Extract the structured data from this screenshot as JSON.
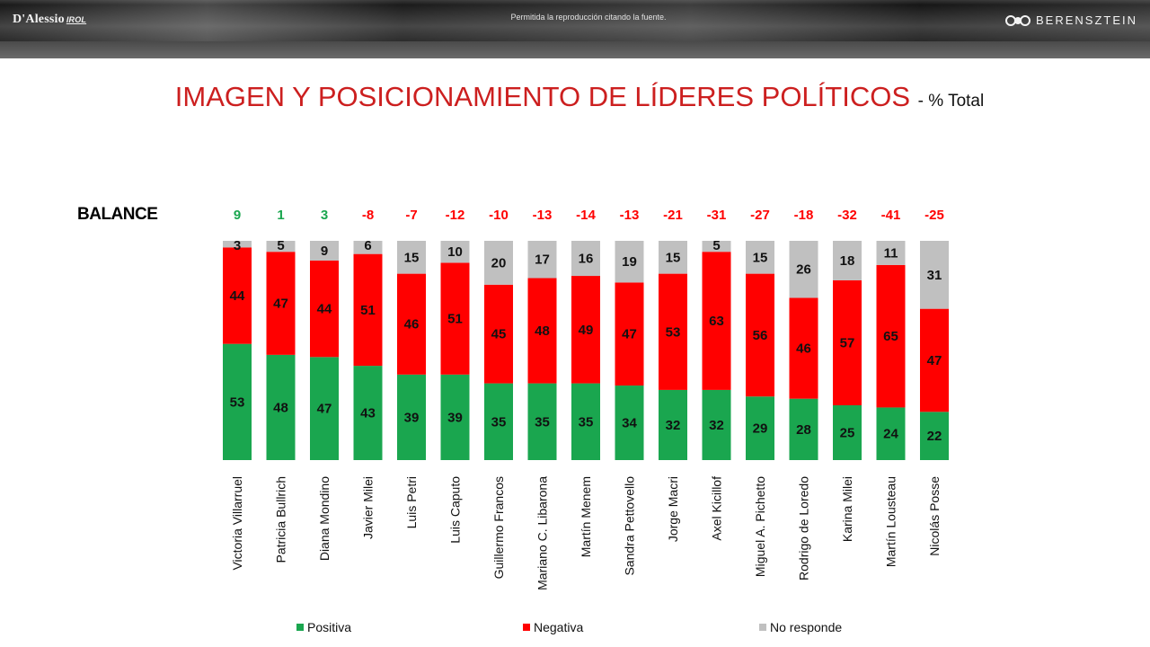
{
  "header": {
    "logo_left": "D'Alessio",
    "logo_left_sub": "IROL",
    "note": "Permitida la reproducción citando la fuente.",
    "logo_right": "BERENSZTEIN"
  },
  "colors": {
    "positive": "#1aa64f",
    "negative": "#ff0000",
    "no_response": "#c0c0c0",
    "balance_positive": "#1aa64f",
    "balance_negative": "#ff0000",
    "title": "#cc1f1f"
  },
  "chart_data": {
    "type": "bar",
    "stacked": true,
    "orientation": "vertical",
    "title": "IMAGEN Y POSICIONAMIENTO DE LÍDERES POLÍTICOS",
    "subtitle": "- % Total",
    "balance_label": "BALANCE",
    "ylim": [
      0,
      100
    ],
    "categories": [
      "Victoria Villarruel",
      "Patricia Bullrich",
      "Diana Mondino",
      "Javier Milei",
      "Luis Petri",
      "Luis Caputo",
      "Guillermo Francos",
      "Mariano C. Libarona",
      "Martín Menem",
      "Sandra Pettovello",
      "Jorge Macri",
      "Axel Kicillof",
      "Miguel A. Pichetto",
      "Rodrigo de Loredo",
      "Karina Milei",
      "Martín Lousteau",
      "Nicolás Posse"
    ],
    "series": [
      {
        "name": "Positiva",
        "values": [
          53,
          48,
          47,
          43,
          39,
          39,
          35,
          35,
          35,
          34,
          32,
          32,
          29,
          28,
          25,
          24,
          22
        ]
      },
      {
        "name": "Negativa",
        "values": [
          44,
          47,
          44,
          51,
          46,
          51,
          45,
          48,
          49,
          47,
          53,
          63,
          56,
          46,
          57,
          65,
          47
        ]
      },
      {
        "name": "No responde",
        "values": [
          3,
          5,
          9,
          6,
          15,
          10,
          20,
          17,
          16,
          19,
          15,
          5,
          15,
          26,
          18,
          11,
          31
        ]
      }
    ],
    "balance": [
      "9",
      "1",
      "3",
      "-8",
      "-7",
      "-12",
      "-10",
      "-13",
      "-14",
      "-13",
      "-21",
      "-31",
      "-27",
      "-18",
      "-32",
      "-41",
      "-25"
    ],
    "legend": [
      "Positiva",
      "Negativa",
      "No responde"
    ],
    "legend_position": "bottom"
  }
}
